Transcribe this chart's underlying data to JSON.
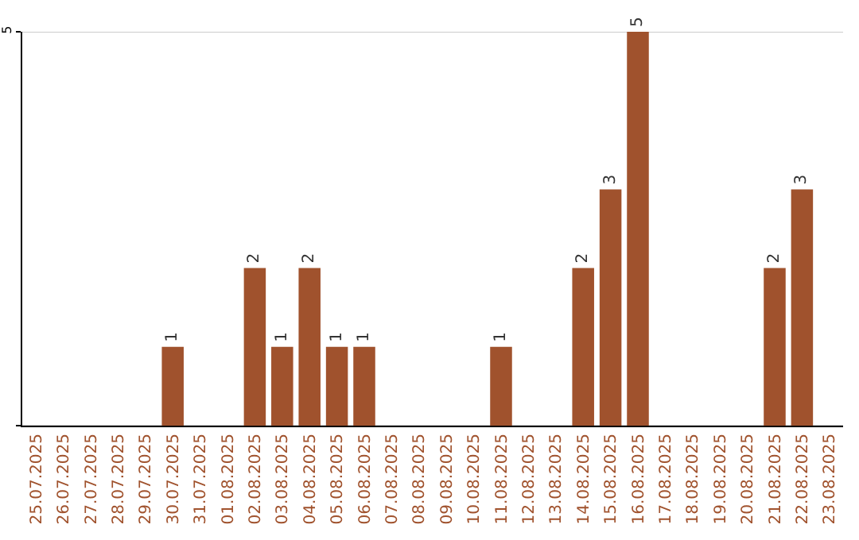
{
  "chart_data": {
    "type": "bar",
    "categories": [
      "25.07.2025",
      "26.07.2025",
      "27.07.2025",
      "28.07.2025",
      "29.07.2025",
      "30.07.2025",
      "31.07.2025",
      "01.08.2025",
      "02.08.2025",
      "03.08.2025",
      "04.08.2025",
      "05.08.2025",
      "06.08.2025",
      "07.08.2025",
      "08.08.2025",
      "09.08.2025",
      "10.08.2025",
      "11.08.2025",
      "12.08.2025",
      "13.08.2025",
      "14.08.2025",
      "15.08.2025",
      "16.08.2025",
      "17.08.2025",
      "18.08.2025",
      "19.08.2025",
      "20.08.2025",
      "21.08.2025",
      "22.08.2025",
      "23.08.2025"
    ],
    "values": [
      0,
      0,
      0,
      0,
      0,
      1,
      0,
      0,
      2,
      1,
      2,
      1,
      1,
      0,
      0,
      0,
      0,
      1,
      0,
      0,
      2,
      3,
      5,
      0,
      0,
      0,
      0,
      2,
      3,
      0
    ],
    "value_labels": [
      null,
      null,
      null,
      null,
      null,
      "1",
      null,
      null,
      "2",
      "1",
      "2",
      "1",
      "1",
      null,
      null,
      null,
      null,
      "1",
      null,
      null,
      "2",
      "3",
      "5",
      null,
      null,
      null,
      null,
      "2",
      "3",
      null
    ],
    "color": "#a0522d",
    "ylim": [
      0,
      5
    ],
    "yticks": [
      {
        "value": 0,
        "label": null
      },
      5
    ],
    "grid": "y"
  }
}
